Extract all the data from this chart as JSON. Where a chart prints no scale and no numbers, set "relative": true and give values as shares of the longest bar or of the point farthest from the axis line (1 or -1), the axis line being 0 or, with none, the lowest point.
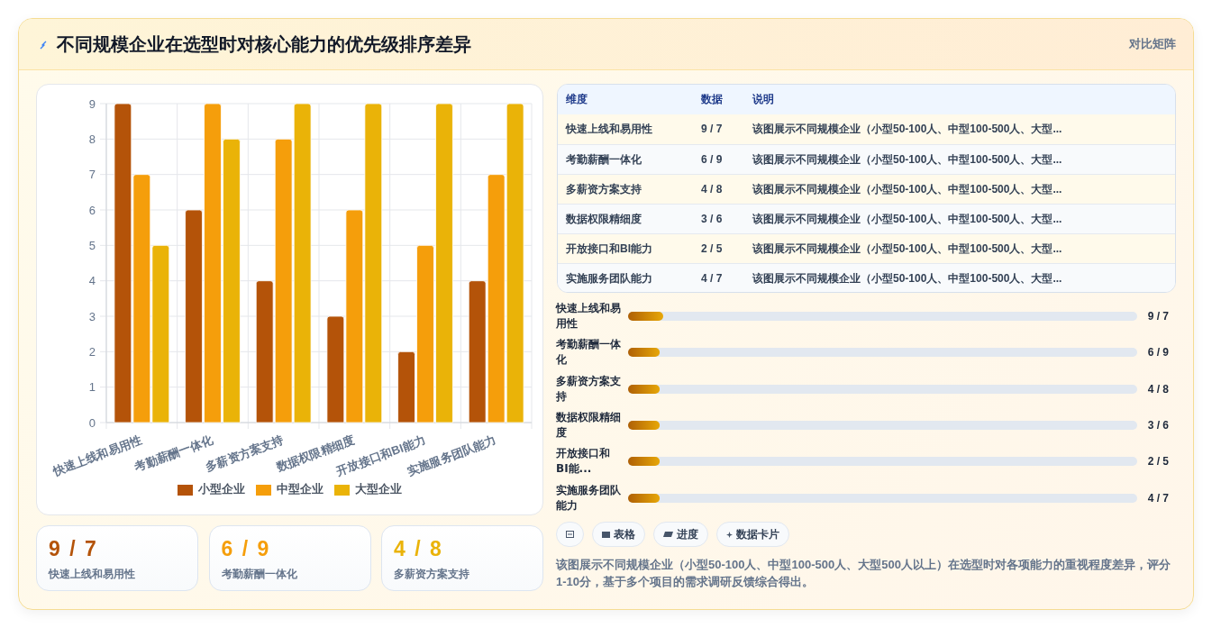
{
  "chart_data": [
    {
      "type": "bar",
      "title": "不同规模企业在选型时对核心能力的优先级排序差异",
      "annotations": [
        "对比矩阵"
      ],
      "categories": [
        "快速上线和易用性",
        "考勤薪酬一体化",
        "多薪资方案支持",
        "数据权限精细度",
        "开放接口和BI能力",
        "实施服务团队能力"
      ],
      "series": [
        {
          "name": "小型企业",
          "color": "#b45309",
          "values": [
            9,
            6,
            4,
            3,
            2,
            4
          ]
        },
        {
          "name": "中型企业",
          "color": "#f59e0b",
          "values": [
            7,
            9,
            8,
            6,
            5,
            7
          ]
        },
        {
          "name": "大型企业",
          "color": "#eab308",
          "values": [
            5,
            8,
            9,
            9,
            9,
            9
          ]
        }
      ],
      "ylim": [
        0,
        9
      ],
      "yticks": [
        0,
        1,
        2,
        3,
        4,
        5,
        6,
        7,
        8,
        9
      ],
      "grid": true,
      "legend": "bottom"
    },
    {
      "type": "other",
      "categories": [
        "维度",
        "数据",
        "说明"
      ],
      "cell_labels": [
        [
          "快速上线和易用性",
          "9 / 7",
          "该图展示不同规模企业（小型50-100人、中型100-500人、大型..."
        ],
        [
          "考勤薪酬一体化",
          "6 / 9",
          "该图展示不同规模企业（小型50-100人、中型100-500人、大型..."
        ],
        [
          "多薪资方案支持",
          "4 / 8",
          "该图展示不同规模企业（小型50-100人、中型100-500人、大型..."
        ],
        [
          "数据权限精细度",
          "3 / 6",
          "该图展示不同规模企业（小型50-100人、中型100-500人、大型..."
        ],
        [
          "开放接口和BI能力",
          "2 / 5",
          "该图展示不同规模企业（小型50-100人、中型100-500人、大型..."
        ],
        [
          "实施服务团队能力",
          "4 / 7",
          "该图展示不同规模企业（小型50-100人、中型100-500人、大型..."
        ]
      ]
    },
    {
      "type": "bar",
      "orientation": "horizontal",
      "relative": true,
      "categories": [
        "快速上线和易用性",
        "考勤薪酬一体化",
        "多薪资方案支持",
        "数据权限精细度",
        "开放接口和BI能...",
        "实施服务团队能力"
      ],
      "y2_categories": [
        "9 / 7",
        "6 / 9",
        "4 / 8",
        "3 / 6",
        "2 / 5",
        "4 / 7"
      ],
      "values": [
        1,
        0.9,
        0.9,
        0.9,
        0.9,
        0.9
      ],
      "color": "#d97706"
    },
    {
      "type": "other",
      "categories": [
        "快速上线和易用性",
        "考勤薪酬一体化",
        "多薪资方案支持"
      ],
      "value_labels": [
        "9 / 7",
        "6 / 9",
        "4 / 8"
      ]
    },
    {
      "type": "other",
      "annotations": [
        "表格",
        "进度",
        "数据卡片",
        "该图展示不同规模企业（小型50-100人、中型100-500人、大型500人以上）在选型时对各项能力的重视程度差异，评分1-10分，基于多个项目的需求调研反馈综合得出。"
      ]
    }
  ]
}
